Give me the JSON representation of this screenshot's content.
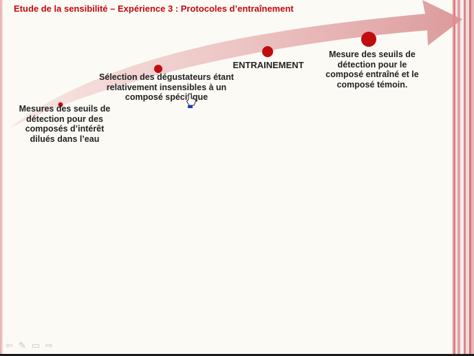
{
  "slide": {
    "title": "Etude de la sensibilité – Expérience 3 : Protocoles d’entraînement",
    "steps": [
      {
        "label": "Mesures des seuils de détection pour des composés d’intérêt dilués dans l’eau"
      },
      {
        "label": "Sélection des dégustateurs étant relativement insensibles à un composé spécifique"
      },
      {
        "label": "ENTRAINEMENT"
      },
      {
        "label": "Mesure des seuils de détection pour le composé entraîné et le composé témoin."
      }
    ],
    "colors": {
      "title": "#c0090f",
      "dot": "#c00d10",
      "arrow": "#e9b6b6"
    }
  },
  "toolbar": {
    "prev_icon": "arrow-left-icon",
    "pen_icon": "pen-icon",
    "menu_icon": "slide-menu-icon",
    "next_icon": "arrow-right-icon"
  }
}
